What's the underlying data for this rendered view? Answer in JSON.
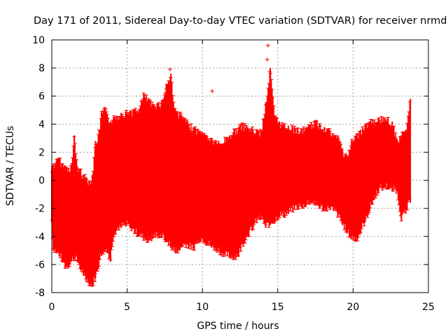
{
  "chart_data": {
    "type": "scatter",
    "title": "Day 171 of 2011, Sidereal Day-to-day VTEC variation (SDTVAR) for receiver nrmd",
    "xlabel": "GPS time / hours",
    "ylabel": "SDTVAR / TECUs",
    "xlim": [
      0,
      25
    ],
    "ylim": [
      -8,
      10
    ],
    "xticks": [
      0,
      5,
      10,
      15,
      20,
      25
    ],
    "yticks": [
      -8,
      -6,
      -4,
      -2,
      0,
      2,
      4,
      6,
      8,
      10
    ],
    "grid": true,
    "series_color": "#ff0000",
    "series": [
      {
        "name": "SDTVAR",
        "x": [
          0.0,
          0.1,
          0.3,
          0.5,
          0.7,
          0.9,
          1.1,
          1.3,
          1.5,
          1.7,
          1.9,
          2.1,
          2.3,
          2.5,
          2.7,
          2.9,
          3.1,
          3.3,
          3.5,
          3.7,
          3.9,
          4.1,
          4.3,
          4.6,
          4.9,
          5.2,
          5.5,
          5.8,
          6.1,
          6.4,
          6.7,
          7.0,
          7.3,
          7.6,
          7.9,
          8.2,
          8.5,
          8.8,
          9.1,
          9.4,
          9.7,
          10.0,
          10.3,
          10.6,
          10.9,
          11.2,
          11.5,
          11.8,
          12.1,
          12.4,
          12.7,
          13.0,
          13.3,
          13.6,
          13.9,
          14.2,
          14.5,
          14.8,
          15.1,
          15.4,
          15.7,
          16.0,
          16.3,
          16.6,
          16.9,
          17.2,
          17.5,
          17.8,
          18.1,
          18.4,
          18.7,
          19.0,
          19.3,
          19.6,
          19.9,
          20.2,
          20.5,
          20.8,
          21.1,
          21.4,
          21.7,
          22.0,
          22.3,
          22.6,
          22.9,
          23.2,
          23.5,
          23.8
        ],
        "ymin": [
          -3.0,
          -5.0,
          -5.2,
          -5.4,
          -5.8,
          -6.3,
          -6.2,
          -5.8,
          -5.6,
          -5.8,
          -6.4,
          -6.8,
          -7.2,
          -7.4,
          -7.6,
          -7.0,
          -6.2,
          -5.4,
          -5.0,
          -5.2,
          -5.8,
          -4.0,
          -3.6,
          -3.4,
          -3.3,
          -3.4,
          -3.8,
          -4.0,
          -4.2,
          -4.4,
          -4.2,
          -4.0,
          -4.1,
          -4.4,
          -4.8,
          -5.2,
          -5.0,
          -4.6,
          -4.8,
          -5.0,
          -4.4,
          -4.2,
          -4.6,
          -4.8,
          -5.0,
          -5.2,
          -5.4,
          -5.5,
          -5.6,
          -5.4,
          -4.6,
          -4.0,
          -3.6,
          -3.0,
          -2.8,
          -3.4,
          -3.2,
          -3.0,
          -2.6,
          -2.6,
          -2.4,
          -2.2,
          -2.0,
          -2.0,
          -1.8,
          -1.6,
          -1.8,
          -2.0,
          -2.2,
          -2.0,
          -2.2,
          -2.6,
          -3.2,
          -3.8,
          -4.2,
          -4.4,
          -3.8,
          -3.0,
          -2.2,
          -1.4,
          -0.8,
          -0.6,
          -0.6,
          -0.8,
          -0.8,
          -2.8,
          -2.4,
          -1.6
        ],
        "ymax": [
          0.8,
          1.2,
          1.4,
          1.6,
          1.2,
          1.0,
          0.9,
          1.1,
          3.2,
          1.0,
          0.8,
          0.4,
          0.2,
          0.0,
          0.4,
          2.8,
          3.2,
          4.8,
          5.2,
          4.6,
          4.2,
          4.5,
          4.6,
          4.8,
          4.9,
          5.0,
          5.0,
          5.1,
          6.2,
          5.8,
          5.4,
          5.5,
          5.6,
          6.8,
          7.6,
          5.0,
          4.8,
          4.4,
          4.0,
          3.8,
          3.6,
          3.4,
          3.2,
          3.0,
          2.8,
          2.6,
          3.0,
          3.2,
          3.6,
          3.8,
          4.0,
          3.8,
          3.7,
          3.6,
          3.5,
          5.5,
          8.0,
          4.6,
          4.2,
          4.0,
          3.9,
          3.8,
          3.7,
          3.6,
          3.8,
          4.0,
          4.2,
          4.0,
          3.8,
          3.7,
          3.2,
          3.2,
          2.2,
          1.6,
          2.8,
          3.2,
          3.6,
          4.0,
          4.2,
          4.3,
          4.4,
          4.5,
          4.4,
          4.2,
          3.0,
          3.2,
          3.6,
          5.8
        ]
      }
    ],
    "outliers": [
      {
        "x": 10.65,
        "y": 6.35
      },
      {
        "x": 14.35,
        "y": 9.6
      },
      {
        "x": 14.3,
        "y": 8.6
      },
      {
        "x": 7.85,
        "y": 7.9
      }
    ]
  }
}
